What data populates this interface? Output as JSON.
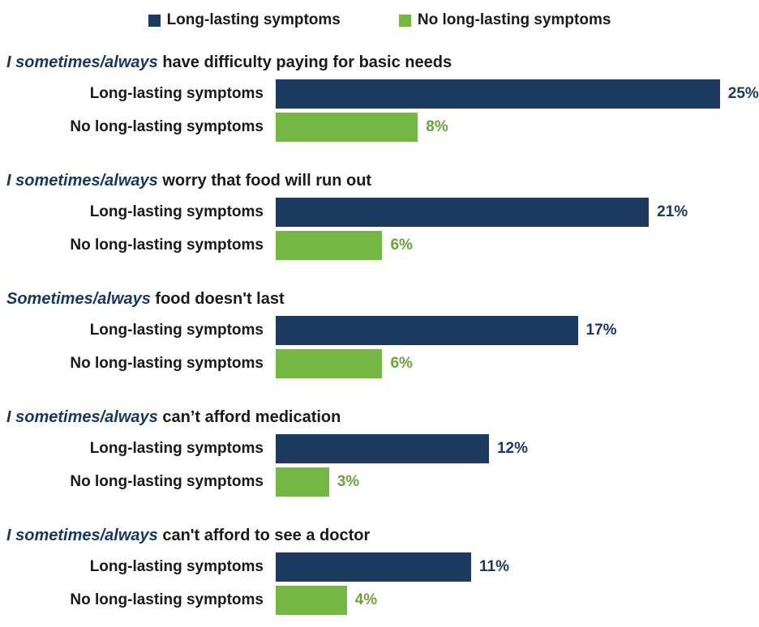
{
  "chart_data": {
    "type": "bar",
    "orientation": "horizontal",
    "title": "",
    "xlabel": "",
    "ylabel": "",
    "xlim": [
      0,
      27.2
    ],
    "grid": false,
    "legend_position": "top-center",
    "colors": {
      "long_lasting": "#1c3a60",
      "no_long_lasting": "#74b744",
      "long_lasting_value_text": "#1c3a60",
      "no_long_lasting_value_text": "#6ca23c",
      "heading_emphasis": "#17375e",
      "body_text": "#1a1a1a"
    },
    "legend": [
      {
        "label": "Long-lasting symptoms",
        "series": "long_lasting"
      },
      {
        "label": "No long-lasting symptoms",
        "series": "no_long_lasting"
      }
    ],
    "groups": [
      {
        "title_emphasis": "I sometimes/always",
        "title_rest": " have difficulty paying for basic needs",
        "bars": [
          {
            "label": "Long-lasting symptoms",
            "series": "long_lasting",
            "value": 25,
            "display": "25%"
          },
          {
            "label": "No long-lasting symptoms",
            "series": "no_long_lasting",
            "value": 8,
            "display": "8%"
          }
        ]
      },
      {
        "title_emphasis": "I sometimes/always",
        "title_rest": " worry that food will run out",
        "bars": [
          {
            "label": "Long-lasting symptoms",
            "series": "long_lasting",
            "value": 21,
            "display": "21%"
          },
          {
            "label": "No long-lasting symptoms",
            "series": "no_long_lasting",
            "value": 6,
            "display": "6%"
          }
        ]
      },
      {
        "title_emphasis": "Sometimes/always",
        "title_rest": " food doesn't last",
        "bars": [
          {
            "label": "Long-lasting symptoms",
            "series": "long_lasting",
            "value": 17,
            "display": "17%"
          },
          {
            "label": "No long-lasting symptoms",
            "series": "no_long_lasting",
            "value": 6,
            "display": "6%"
          }
        ]
      },
      {
        "title_emphasis": "I sometimes/always",
        "title_rest": " can’t afford medication",
        "bars": [
          {
            "label": "Long-lasting symptoms",
            "series": "long_lasting",
            "value": 12,
            "display": "12%"
          },
          {
            "label": "No long-lasting symptoms",
            "series": "no_long_lasting",
            "value": 3,
            "display": "3%"
          }
        ]
      },
      {
        "title_emphasis": "I sometimes/always",
        "title_rest": " can't afford to see a doctor",
        "bars": [
          {
            "label": "Long-lasting symptoms",
            "series": "long_lasting",
            "value": 11,
            "display": "11%"
          },
          {
            "label": "No long-lasting symptoms",
            "series": "no_long_lasting",
            "value": 4,
            "display": "4%"
          }
        ]
      }
    ]
  }
}
